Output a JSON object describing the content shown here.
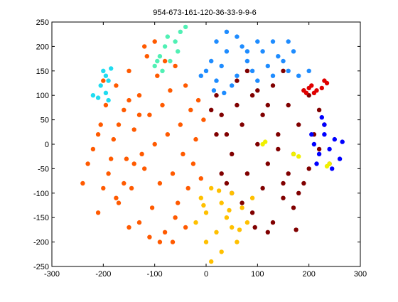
{
  "chart_data": {
    "type": "scatter",
    "title": "954-673-161-120-36-33-9-9-6",
    "xlabel": "",
    "ylabel": "",
    "xlim": [
      -300,
      300
    ],
    "ylim": [
      -250,
      250
    ],
    "xticks": [
      -300,
      -200,
      -100,
      0,
      100,
      200,
      300
    ],
    "yticks": [
      -250,
      -200,
      -150,
      -100,
      -50,
      0,
      50,
      100,
      150,
      200,
      250
    ],
    "grid": false,
    "series": [
      {
        "color": "#ff5a00",
        "count": 954,
        "points": [
          [
            -220,
            -10
          ],
          [
            -205,
            40
          ],
          [
            -190,
            -60
          ],
          [
            -180,
            10
          ],
          [
            -175,
            120
          ],
          [
            -170,
            -120
          ],
          [
            -160,
            70
          ],
          [
            -155,
            -30
          ],
          [
            -150,
            150
          ],
          [
            -145,
            -90
          ],
          [
            -140,
            30
          ],
          [
            -130,
            -160
          ],
          [
            -130,
            100
          ],
          [
            -120,
            -50
          ],
          [
            -115,
            180
          ],
          [
            -110,
            60
          ],
          [
            -105,
            -130
          ],
          [
            -100,
            0
          ],
          [
            -95,
            140
          ],
          [
            -90,
            -80
          ],
          [
            -85,
            80
          ],
          [
            -80,
            -180
          ],
          [
            -75,
            20
          ],
          [
            -70,
            110
          ],
          [
            -65,
            -60
          ],
          [
            -60,
            160
          ],
          [
            -55,
            -120
          ],
          [
            -50,
            40
          ],
          [
            -45,
            -20
          ],
          [
            -40,
            120
          ],
          [
            -35,
            -90
          ],
          [
            -30,
            70
          ],
          [
            -25,
            -40
          ],
          [
            -20,
            10
          ],
          [
            -15,
            90
          ],
          [
            -10,
            -70
          ],
          [
            -5,
            50
          ],
          [
            -130,
            60
          ],
          [
            -140,
            -40
          ],
          [
            -150,
            90
          ],
          [
            -160,
            -80
          ],
          [
            -170,
            40
          ],
          [
            -185,
            -30
          ],
          [
            -195,
            80
          ],
          [
            -200,
            -90
          ],
          [
            -210,
            20
          ],
          [
            -230,
            -40
          ],
          [
            -240,
            -80
          ],
          [
            -60,
            -150
          ],
          [
            -40,
            -170
          ],
          [
            -90,
            -200
          ],
          [
            -110,
            -190
          ],
          [
            -120,
            200
          ],
          [
            -100,
            210
          ],
          [
            -80,
            170
          ],
          [
            -200,
            130
          ],
          [
            -210,
            -140
          ],
          [
            -150,
            -170
          ],
          [
            -175,
            -110
          ],
          [
            -125,
            -20
          ],
          [
            -65,
            -200
          ]
        ]
      },
      {
        "color": "#800000",
        "count": 673,
        "points": [
          [
            20,
            100
          ],
          [
            30,
            60
          ],
          [
            40,
            20
          ],
          [
            50,
            -20
          ],
          [
            60,
            80
          ],
          [
            70,
            40
          ],
          [
            80,
            -60
          ],
          [
            90,
            100
          ],
          [
            100,
            0
          ],
          [
            110,
            60
          ],
          [
            120,
            -40
          ],
          [
            130,
            120
          ],
          [
            140,
            20
          ],
          [
            150,
            -80
          ],
          [
            160,
            80
          ],
          [
            170,
            -20
          ],
          [
            180,
            40
          ],
          [
            190,
            110
          ],
          [
            200,
            -50
          ],
          [
            210,
            20
          ],
          [
            220,
            70
          ],
          [
            30,
            -60
          ],
          [
            50,
            -100
          ],
          [
            70,
            -120
          ],
          [
            90,
            -140
          ],
          [
            110,
            -90
          ],
          [
            130,
            -160
          ],
          [
            150,
            -110
          ],
          [
            170,
            -130
          ],
          [
            190,
            -80
          ],
          [
            60,
            130
          ],
          [
            80,
            150
          ],
          [
            100,
            110
          ],
          [
            120,
            80
          ],
          [
            140,
            -10
          ],
          [
            160,
            -60
          ],
          [
            180,
            -100
          ],
          [
            200,
            100
          ],
          [
            220,
            -10
          ],
          [
            40,
            -80
          ],
          [
            20,
            20
          ],
          [
            10,
            70
          ],
          [
            230,
            40
          ],
          [
            240,
            -40
          ],
          [
            150,
            150
          ],
          [
            175,
            -175
          ],
          [
            120,
            -180
          ],
          [
            95,
            -170
          ]
        ]
      },
      {
        "color": "#ffc000",
        "count": 161,
        "points": [
          [
            -10,
            -110
          ],
          [
            0,
            -140
          ],
          [
            10,
            -90
          ],
          [
            20,
            -180
          ],
          [
            30,
            -120
          ],
          [
            40,
            -150
          ],
          [
            50,
            -100
          ],
          [
            60,
            -200
          ],
          [
            70,
            -130
          ],
          [
            80,
            -160
          ],
          [
            90,
            -110
          ],
          [
            -20,
            -160
          ],
          [
            0,
            -200
          ],
          [
            10,
            -240
          ],
          [
            30,
            -220
          ],
          [
            50,
            -170
          ],
          [
            -5,
            -125
          ],
          [
            25,
            -95
          ],
          [
            45,
            -135
          ],
          [
            65,
            -175
          ]
        ]
      },
      {
        "color": "#1e8cff",
        "count": 120,
        "points": [
          [
            0,
            150
          ],
          [
            10,
            170
          ],
          [
            20,
            130
          ],
          [
            30,
            160
          ],
          [
            40,
            190
          ],
          [
            50,
            120
          ],
          [
            60,
            140
          ],
          [
            70,
            200
          ],
          [
            80,
            170
          ],
          [
            90,
            150
          ],
          [
            100,
            130
          ],
          [
            110,
            190
          ],
          [
            120,
            160
          ],
          [
            130,
            140
          ],
          [
            140,
            180
          ],
          [
            150,
            170
          ],
          [
            160,
            150
          ],
          [
            170,
            190
          ],
          [
            20,
            210
          ],
          [
            40,
            230
          ],
          [
            60,
            220
          ],
          [
            80,
            190
          ],
          [
            100,
            210
          ],
          [
            130,
            210
          ],
          [
            160,
            210
          ],
          [
            180,
            140
          ],
          [
            200,
            150
          ],
          [
            -10,
            140
          ],
          [
            15,
            110
          ],
          [
            35,
            105
          ]
        ]
      },
      {
        "color": "#0000ff",
        "count": 36,
        "points": [
          [
            210,
            0
          ],
          [
            220,
            -20
          ],
          [
            230,
            20
          ],
          [
            240,
            -10
          ],
          [
            250,
            10
          ],
          [
            260,
            -30
          ],
          [
            230,
            40
          ],
          [
            215,
            -40
          ],
          [
            245,
            -50
          ],
          [
            265,
            5
          ],
          [
            205,
            20
          ],
          [
            225,
            55
          ]
        ]
      },
      {
        "color": "#50f0b4",
        "count": 33,
        "points": [
          [
            -100,
            160
          ],
          [
            -90,
            180
          ],
          [
            -80,
            200
          ],
          [
            -70,
            170
          ],
          [
            -60,
            210
          ],
          [
            -50,
            230
          ],
          [
            -40,
            240
          ],
          [
            -85,
            150
          ],
          [
            -95,
            170
          ],
          [
            -55,
            190
          ],
          [
            -75,
            220
          ]
        ]
      },
      {
        "color": "#20dcf0",
        "count": 9,
        "points": [
          [
            -200,
            150
          ],
          [
            -195,
            140
          ],
          [
            -190,
            130
          ],
          [
            -205,
            120
          ],
          [
            -185,
            155
          ],
          [
            -220,
            100
          ],
          [
            -195,
            105
          ],
          [
            -210,
            95
          ],
          [
            -190,
            90
          ]
        ]
      },
      {
        "color": "#e00000",
        "count": 9,
        "points": [
          [
            190,
            110
          ],
          [
            200,
            115
          ],
          [
            210,
            105
          ],
          [
            230,
            130
          ],
          [
            235,
            125
          ],
          [
            215,
            110
          ],
          [
            205,
            120
          ],
          [
            195,
            105
          ],
          [
            225,
            115
          ]
        ]
      },
      {
        "color": "#f0f000",
        "count": 6,
        "points": [
          [
            110,
            0
          ],
          [
            115,
            5
          ],
          [
            170,
            -20
          ],
          [
            180,
            -25
          ],
          [
            240,
            -40
          ],
          [
            235,
            -45
          ]
        ]
      }
    ]
  }
}
